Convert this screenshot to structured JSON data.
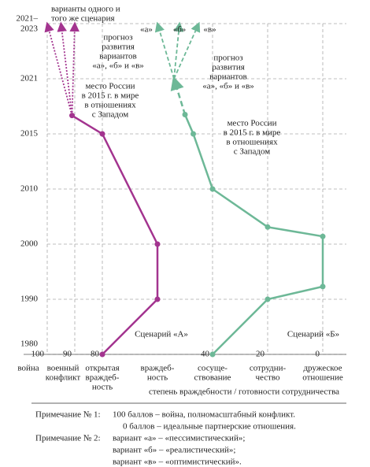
{
  "chart_data": {
    "type": "line",
    "xlim": [
      100,
      0
    ],
    "xticks": [
      100,
      90,
      80,
      40,
      20,
      0
    ],
    "ylim": [
      1980,
      2023
    ],
    "yticks": [
      1980,
      1990,
      2000,
      2010,
      2015,
      2021,
      {
        "value": 2023,
        "label": "2021–2023"
      }
    ],
    "grid": true,
    "categories": [
      [
        "война"
      ],
      [
        "военный",
        "конфликт"
      ],
      [
        "открытая",
        "враждеб-",
        "ность"
      ],
      [
        "враждеб-",
        "ность"
      ],
      [
        "сосуще-",
        "ствование"
      ],
      [
        "сотрудни-",
        "чество"
      ],
      [
        "дружеское",
        "отношение"
      ]
    ],
    "xlabel": "степень враждебности / готовности сотрудничества",
    "series": [
      {
        "name": "Сценарий «А»",
        "color": "#a3348f",
        "x": [
          1980,
          1990,
          2000,
          2015,
          2017
        ],
        "values": [
          80,
          60,
          60,
          80,
          91
        ],
        "variants": {
          "x": 2023,
          "values": [
            100,
            95,
            90
          ]
        }
      },
      {
        "name": "Сценарий «Б»",
        "color": "#6db897",
        "x": [
          1980,
          1990,
          1992.3,
          2001.4,
          2003.1,
          2010,
          2015,
          2017.1
        ],
        "values": [
          40,
          20,
          0,
          0,
          20,
          40,
          47,
          50
        ],
        "forecast": {
          "x": 2021,
          "value": 54
        },
        "variants": {
          "x": 2023,
          "values": [
            60,
            52,
            45
          ],
          "labels": [
            "«а»",
            "«б»",
            "«в»"
          ]
        }
      }
    ],
    "annotations": {
      "variants_note": [
        "варианты одного и",
        "того же сценария"
      ],
      "forecast_a": [
        "прогноз",
        "развития",
        "вариантов",
        "«а», «б» и «в»"
      ],
      "place_a": [
        "место России",
        "в 2015 г. в мире",
        "в отношениях",
        "с Западом"
      ],
      "forecast_b": [
        "прогноз",
        "развития",
        "вариантов",
        "«а», «б» и «в»"
      ],
      "place_b": [
        "место России",
        "в 2015 г. в мире",
        "в отношениях",
        "с Западом"
      ]
    },
    "notes": [
      {
        "label": "Примечание № 1:",
        "lines": [
          "100 баллов – война, полномасштабный конфликт.",
          "0 баллов – идеальные партнерские отношения."
        ]
      },
      {
        "label": "Примечание № 2:",
        "lines": [
          "вариант «а» – «пессимистический»;",
          "вариант «б» – «реалистический»;",
          "вариант «в» – «оптимистический»."
        ]
      }
    ]
  }
}
